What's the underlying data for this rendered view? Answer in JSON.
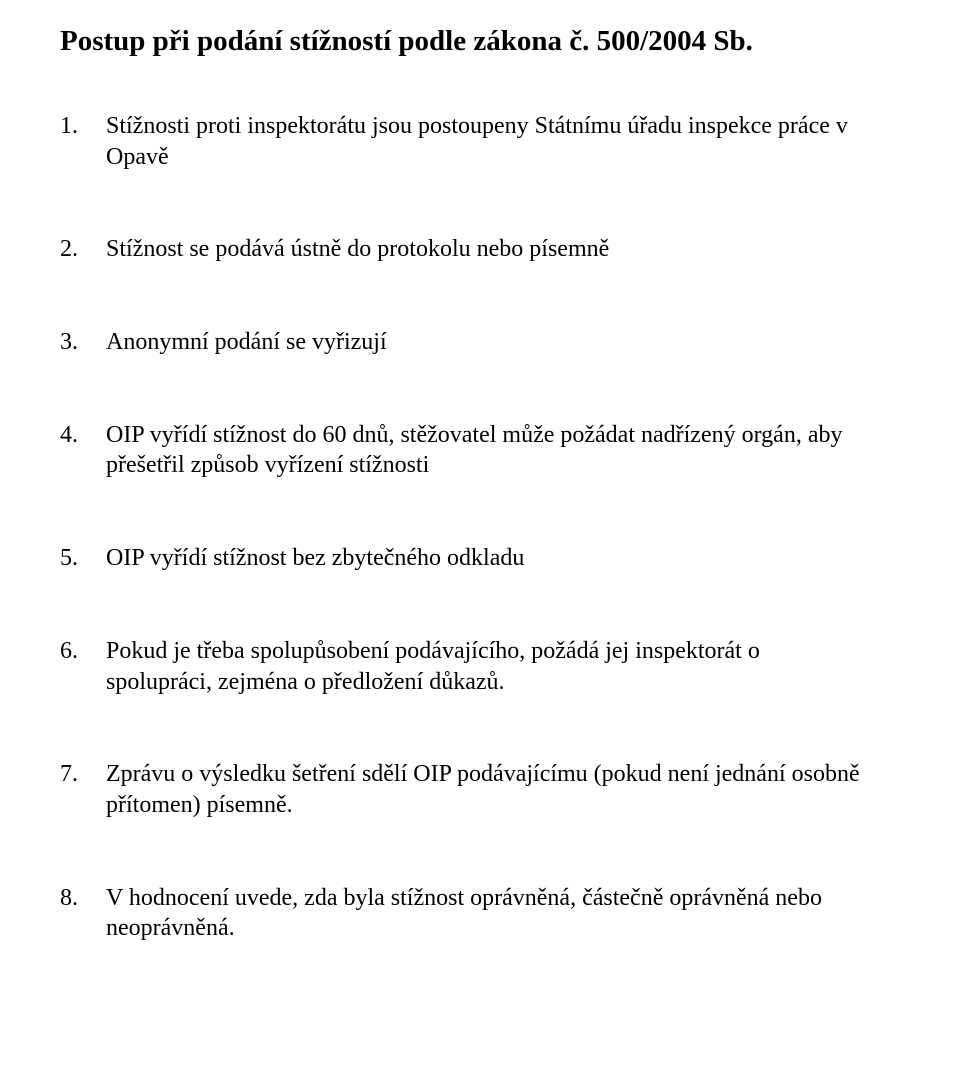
{
  "title": "Postup při podání stížností podle zákona č. 500/2004 Sb.",
  "items": [
    {
      "n": "1.",
      "t": "Stížnosti proti inspektorátu jsou postoupeny Státnímu úřadu inspekce práce v Opavě"
    },
    {
      "n": "2.",
      "t": "Stížnost se podává ústně do protokolu nebo písemně"
    },
    {
      "n": "3.",
      "t": "Anonymní podání se vyřizují"
    },
    {
      "n": "4.",
      "t": "OIP vyřídí stížnost do 60 dnů, stěžovatel může požádat nadřízený orgán, aby přešetřil způsob vyřízení stížnosti"
    },
    {
      "n": "5.",
      "t": "OIP vyřídí stížnost bez zbytečného odkladu"
    },
    {
      "n": "6.",
      "t": "Pokud je třeba spolupůsobení podávajícího, požádá jej inspektorát o spolupráci, zejména o předložení důkazů."
    },
    {
      "n": "7.",
      "t": "Zprávu o výsledku šetření sdělí OIP podávajícímu (pokud není jednání osobně přítomen) písemně."
    },
    {
      "n": "8.",
      "t": "V hodnocení uvede, zda byla stížnost oprávněná, částečně oprávněná nebo neoprávněná."
    }
  ]
}
